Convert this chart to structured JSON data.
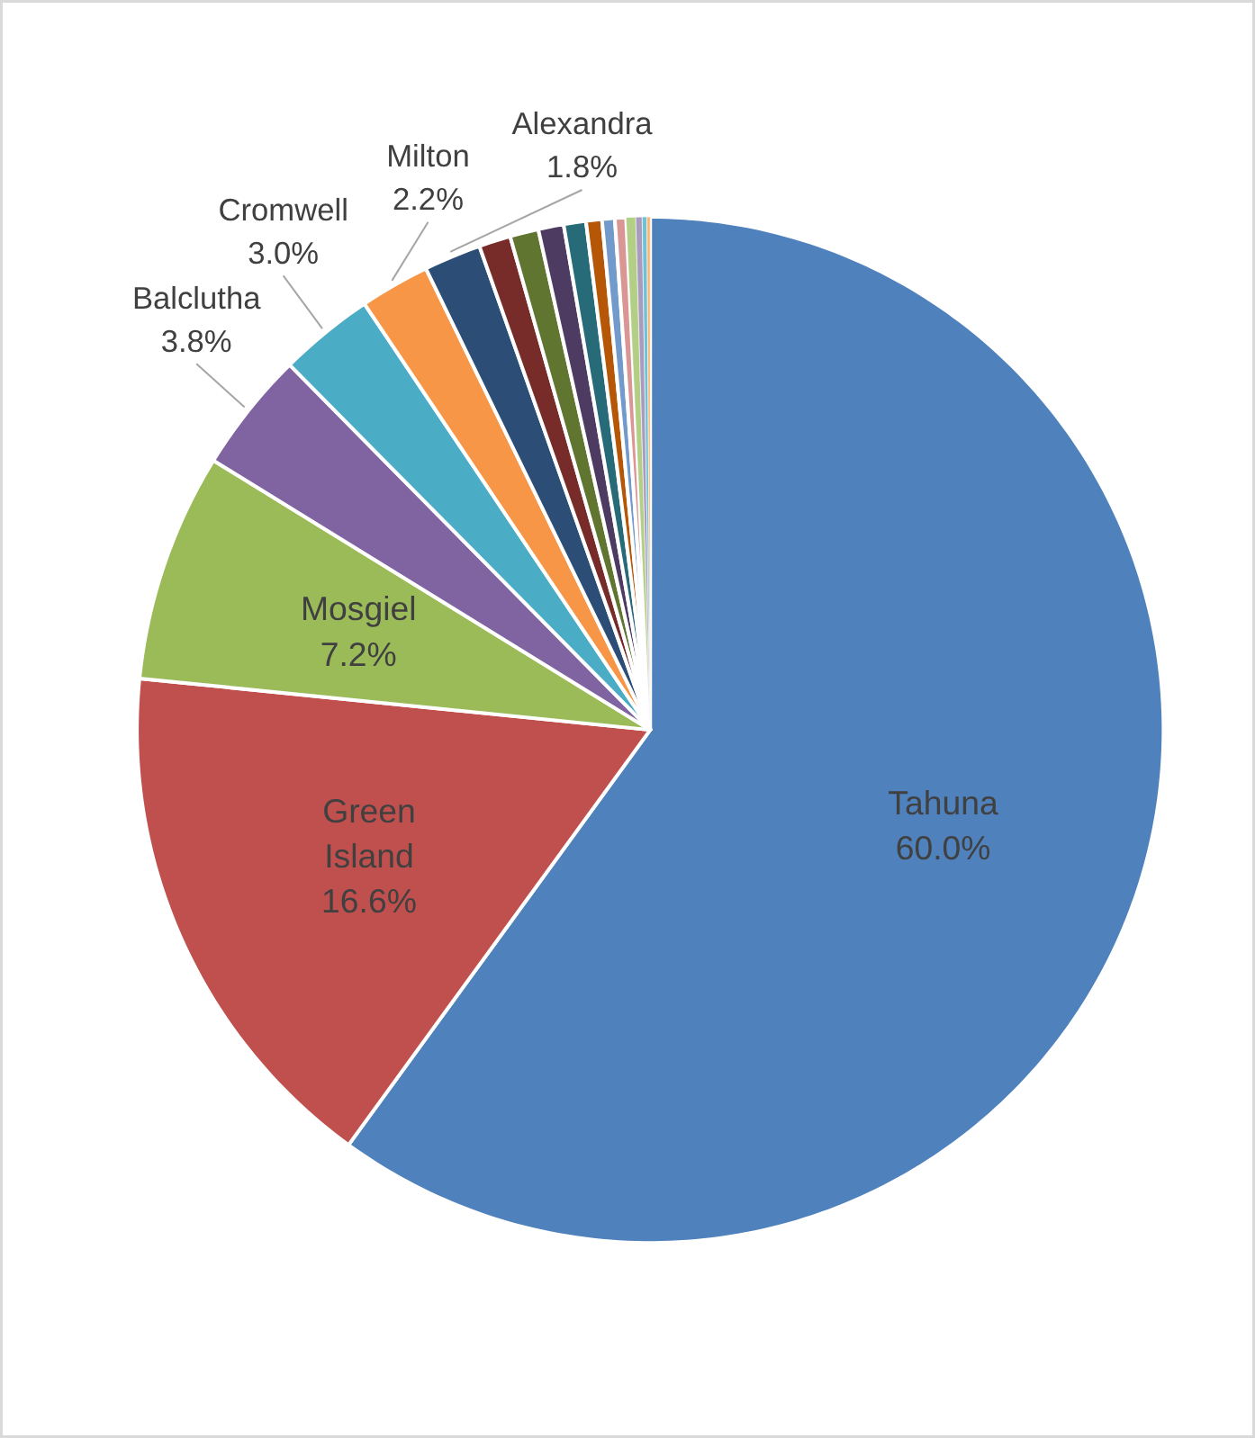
{
  "chart_data": {
    "type": "pie",
    "categories": [
      "Tahuna",
      "Green Island",
      "Mosgiel",
      "Balclutha",
      "Cromwell",
      "Milton",
      "Alexandra",
      null,
      null,
      null,
      null,
      null,
      null,
      null,
      null,
      null,
      null,
      null
    ],
    "values": [
      60.0,
      16.6,
      7.2,
      3.8,
      3.0,
      2.2,
      1.8,
      1.0,
      0.9,
      0.8,
      0.7,
      0.5,
      0.4,
      0.35,
      0.3,
      0.2,
      0.15,
      0.1
    ],
    "colors": [
      "#4f81bd",
      "#c0504d",
      "#9bbb59",
      "#8064a2",
      "#4bacc6",
      "#f79646",
      "#2c4d75",
      "#772c2a",
      "#5f7530",
      "#4d3b62",
      "#276a78",
      "#b65708",
      "#729aca",
      "#d99694",
      "#b3cf86",
      "#a99bbd",
      "#6fc2d6",
      "#f9b56f"
    ],
    "value_labels": [
      "60.0%",
      "16.6%",
      "7.2%",
      "3.8%",
      "3.0%",
      "2.2%",
      "1.8%",
      null,
      null,
      null,
      null,
      null,
      null,
      null,
      null,
      null,
      null,
      null
    ]
  }
}
